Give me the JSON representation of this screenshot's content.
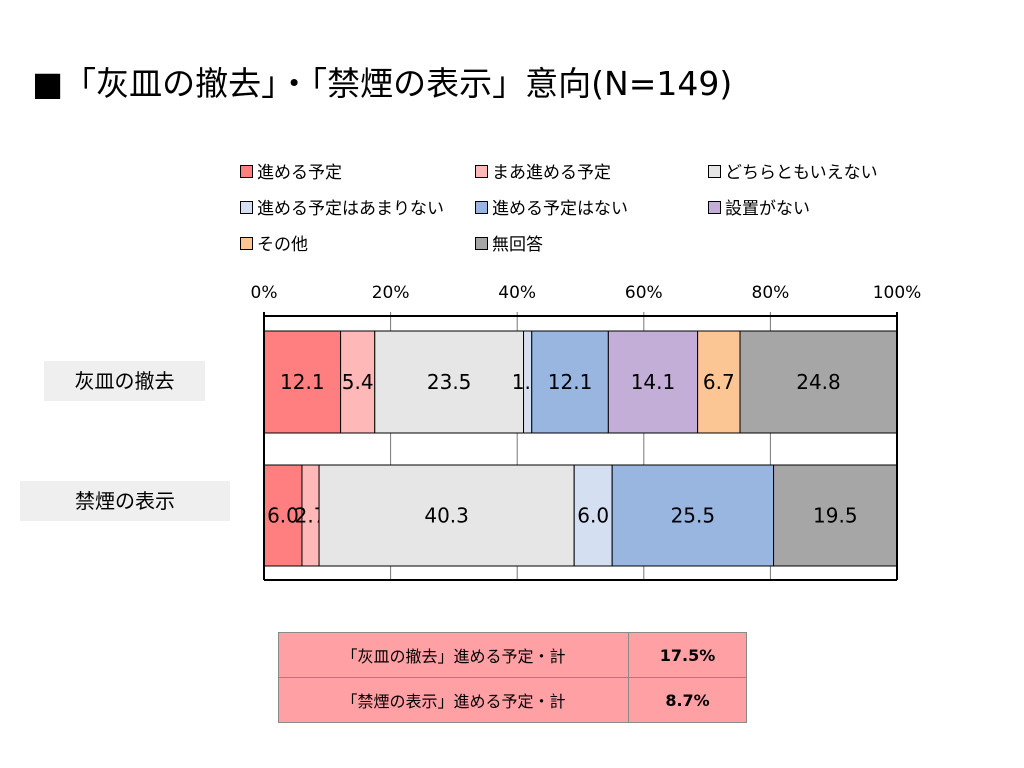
{
  "title": "■「灰皿の撤去」・「禁煙の表示」意向(N=149)",
  "chart_data": {
    "type": "bar",
    "orientation": "horizontal",
    "stacked": true,
    "xlim": [
      0,
      100
    ],
    "x_ticks": [
      "0%",
      "20%",
      "40%",
      "60%",
      "80%",
      "100%"
    ],
    "grid": true,
    "legend_position": "top",
    "categories": [
      "灰皿の撤去",
      "禁煙の表示"
    ],
    "series": [
      {
        "name": "進める予定",
        "color": "#ff7f80",
        "values": [
          12.1,
          6.0
        ]
      },
      {
        "name": "まあ進める予定",
        "color": "#ffb8b8",
        "values": [
          5.4,
          2.7
        ]
      },
      {
        "name": "どちらともいえない",
        "color": "#e6e6e6",
        "values": [
          23.5,
          40.3
        ]
      },
      {
        "name": "進める予定はあまりない",
        "color": "#d4e0f2",
        "values": [
          1.3,
          6.0
        ]
      },
      {
        "name": "進める予定はない",
        "color": "#98b6e0",
        "values": [
          12.1,
          25.5
        ]
      },
      {
        "name": "設置がない",
        "color": "#c2aed6",
        "values": [
          14.1,
          0
        ]
      },
      {
        "name": "その他",
        "color": "#fcc594",
        "values": [
          6.7,
          0
        ]
      },
      {
        "name": "無回答",
        "color": "#a6a6a6",
        "values": [
          24.8,
          19.5
        ]
      }
    ]
  },
  "summary": [
    {
      "label": "「灰皿の撤去」進める予定・計",
      "value": "17.5%"
    },
    {
      "label": "「禁煙の表示」進める予定・計",
      "value": "8.7%"
    }
  ]
}
